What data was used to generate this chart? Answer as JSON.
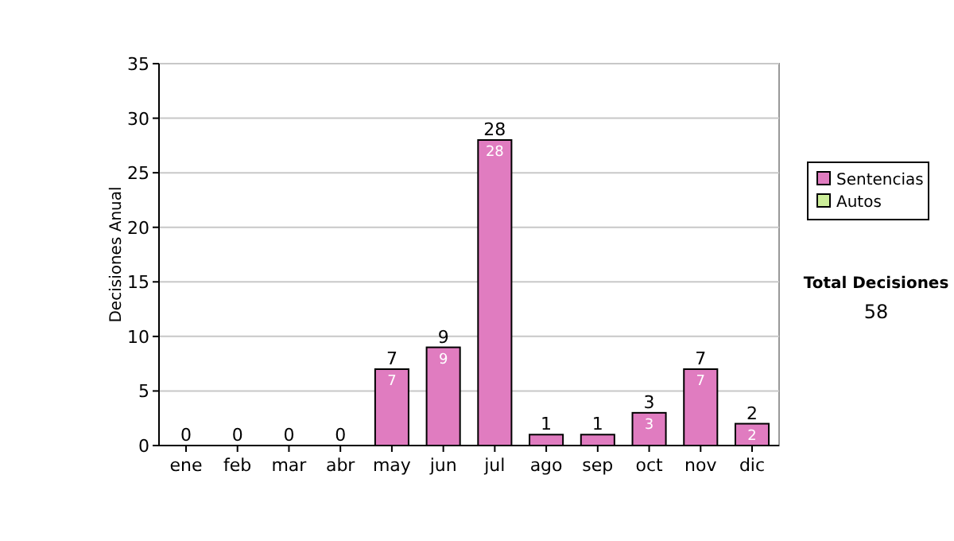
{
  "chart_data": {
    "type": "bar",
    "stacked": true,
    "ylabel": "Decisiones Anual",
    "categories": [
      "ene",
      "feb",
      "mar",
      "abr",
      "may",
      "jun",
      "jul",
      "ago",
      "sep",
      "oct",
      "nov",
      "dic"
    ],
    "series": [
      {
        "name": "Sentencias",
        "color": "#e07cc0",
        "values": [
          0,
          0,
          0,
          0,
          7,
          9,
          28,
          1,
          1,
          3,
          7,
          2
        ],
        "value_labels": [
          null,
          null,
          null,
          null,
          "7",
          "9",
          "28",
          null,
          null,
          "3",
          "7",
          "2"
        ]
      },
      {
        "name": "Autos",
        "color": "#ccee99",
        "values": [
          0,
          0,
          0,
          0,
          0,
          0,
          0,
          0,
          0,
          0,
          0,
          0
        ]
      }
    ],
    "totals": [
      "0",
      "0",
      "0",
      "0",
      "7",
      "9",
      "28",
      "1",
      "1",
      "3",
      "7",
      "2"
    ],
    "ylim": [
      0,
      35
    ],
    "yticks": [
      0,
      5,
      10,
      15,
      20,
      25,
      30,
      35
    ],
    "grid": "y",
    "legend": "right",
    "annotations": [
      "Total Decisiones",
      "58"
    ]
  }
}
